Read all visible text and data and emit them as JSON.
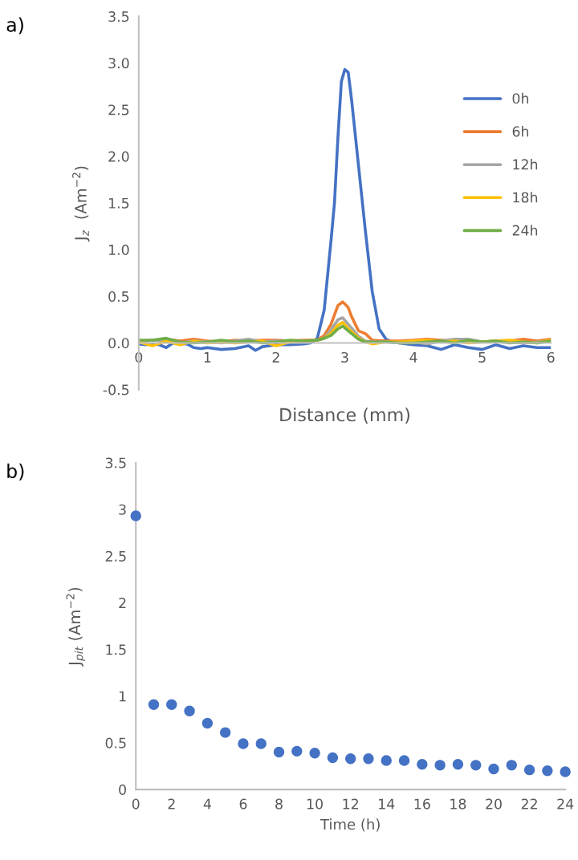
{
  "chart_data": [
    {
      "type": "line",
      "title": "a)",
      "xlabel": "Distance (mm)",
      "ylabel": "J$_{z}$  (Am$^{−2}$)",
      "xlim": [
        0,
        6
      ],
      "xticks": [
        0,
        1,
        2,
        3,
        4,
        5,
        6
      ],
      "ylim": [
        -0.5,
        3.5
      ],
      "yticks": [
        -0.5,
        {
          "value": 0,
          "label": "0.0"
        },
        0.5,
        {
          "value": 1,
          "label": "1.0"
        },
        1.5,
        {
          "value": 2,
          "label": "2.0"
        },
        2.5,
        {
          "value": 3,
          "label": "3.0"
        },
        3.5
      ],
      "grid": false,
      "legend": "right",
      "marker": "none",
      "line_style": "solid",
      "series": [
        {
          "name": "0h",
          "color": "#4472c4",
          "x": [
            0,
            0.1,
            0.2,
            0.3,
            0.4,
            0.5,
            0.6,
            0.7,
            0.8,
            0.9,
            1.0,
            1.2,
            1.4,
            1.6,
            1.7,
            1.8,
            2.0,
            2.2,
            2.4,
            2.5,
            2.6,
            2.7,
            2.8,
            2.85,
            2.9,
            2.95,
            3.0,
            3.05,
            3.1,
            3.2,
            3.3,
            3.4,
            3.5,
            3.6,
            3.7,
            3.8,
            4.0,
            4.2,
            4.4,
            4.6,
            4.8,
            5.0,
            5.2,
            5.4,
            5.6,
            5.8,
            6.0
          ],
          "values": [
            -0.01,
            -0.02,
            -0.01,
            -0.02,
            -0.05,
            0.0,
            -0.01,
            -0.01,
            -0.05,
            -0.06,
            -0.05,
            -0.07,
            -0.06,
            -0.03,
            -0.08,
            -0.04,
            -0.02,
            -0.02,
            -0.01,
            0.0,
            0.05,
            0.35,
            1.1,
            1.5,
            2.2,
            2.8,
            2.93,
            2.9,
            2.6,
            1.9,
            1.2,
            0.55,
            0.15,
            0.04,
            0.01,
            0.0,
            -0.02,
            -0.03,
            -0.07,
            -0.02,
            -0.05,
            -0.07,
            -0.02,
            -0.06,
            -0.03,
            -0.05,
            -0.05
          ]
        },
        {
          "name": "6h",
          "color": "#ed7d31",
          "x": [
            0,
            0.2,
            0.4,
            0.6,
            0.8,
            1.0,
            1.2,
            1.4,
            1.6,
            1.8,
            2.0,
            2.2,
            2.4,
            2.6,
            2.7,
            2.8,
            2.9,
            2.97,
            3.05,
            3.1,
            3.2,
            3.3,
            3.4,
            3.6,
            3.8,
            4.0,
            4.2,
            4.4,
            4.6,
            4.8,
            5.0,
            5.2,
            5.4,
            5.6,
            5.8,
            6.0
          ],
          "values": [
            0.02,
            0.03,
            0.04,
            0.02,
            0.04,
            0.02,
            0.01,
            0.03,
            0.02,
            0.03,
            0.03,
            0.02,
            0.03,
            0.03,
            0.08,
            0.2,
            0.4,
            0.44,
            0.38,
            0.28,
            0.13,
            0.1,
            0.03,
            0.02,
            0.02,
            0.03,
            0.04,
            0.03,
            0.02,
            0.03,
            0.01,
            0.02,
            0.02,
            0.04,
            0.02,
            0.04
          ]
        },
        {
          "name": "12h",
          "color": "#a5a5a5",
          "x": [
            0,
            0.2,
            0.4,
            0.6,
            0.8,
            1.0,
            1.2,
            1.4,
            1.6,
            1.8,
            2.0,
            2.2,
            2.4,
            2.6,
            2.7,
            2.8,
            2.9,
            2.97,
            3.05,
            3.1,
            3.2,
            3.3,
            3.4,
            3.6,
            3.8,
            4.0,
            4.2,
            4.4,
            4.6,
            4.8,
            5.0,
            5.2,
            5.4,
            5.6,
            5.8,
            6.0
          ],
          "values": [
            0.01,
            0.03,
            0.02,
            0.0,
            0.02,
            0.01,
            0.0,
            0.02,
            0.04,
            0.01,
            0.02,
            0.01,
            0.02,
            0.03,
            0.05,
            0.14,
            0.25,
            0.27,
            0.2,
            0.16,
            0.07,
            0.02,
            0.01,
            0.01,
            0.0,
            0.01,
            -0.01,
            0.02,
            0.04,
            0.04,
            0.01,
            0.02,
            0.01,
            0.0,
            0.01,
            0.02
          ]
        },
        {
          "name": "18h",
          "color": "#ffc000",
          "x": [
            0,
            0.2,
            0.4,
            0.6,
            0.8,
            1.0,
            1.2,
            1.4,
            1.6,
            1.8,
            2.0,
            2.2,
            2.4,
            2.6,
            2.7,
            2.8,
            2.9,
            2.97,
            3.05,
            3.1,
            3.2,
            3.3,
            3.4,
            3.6,
            3.8,
            4.0,
            4.2,
            4.4,
            4.6,
            4.8,
            5.0,
            5.2,
            5.4,
            5.6,
            5.8,
            6.0
          ],
          "values": [
            0.01,
            -0.03,
            0.02,
            -0.02,
            0.02,
            0.0,
            0.01,
            0.0,
            0.01,
            0.02,
            -0.03,
            0.01,
            0.02,
            0.03,
            0.05,
            0.1,
            0.19,
            0.22,
            0.15,
            0.12,
            0.05,
            0.01,
            -0.01,
            0.01,
            0.01,
            0.02,
            0.03,
            0.01,
            0.02,
            0.0,
            0.01,
            0.02,
            0.03,
            0.01,
            0.0,
            0.03
          ]
        },
        {
          "name": "24h",
          "color": "#70ad47",
          "x": [
            0,
            0.2,
            0.4,
            0.6,
            0.8,
            1.0,
            1.2,
            1.4,
            1.6,
            1.8,
            2.0,
            2.2,
            2.4,
            2.6,
            2.7,
            2.8,
            2.9,
            2.97,
            3.05,
            3.1,
            3.2,
            3.3,
            3.4,
            3.6,
            3.8,
            4.0,
            4.2,
            4.4,
            4.6,
            4.8,
            5.0,
            5.2,
            5.4,
            5.6,
            5.8,
            6.0
          ],
          "values": [
            0.03,
            0.03,
            0.05,
            0.01,
            0.0,
            0.01,
            0.03,
            0.01,
            0.02,
            0.0,
            0.01,
            0.03,
            0.02,
            0.03,
            0.05,
            0.08,
            0.15,
            0.18,
            0.13,
            0.1,
            0.04,
            0.01,
            0.01,
            0.01,
            0.0,
            0.0,
            0.01,
            0.02,
            0.0,
            0.03,
            0.01,
            0.02,
            0.0,
            0.01,
            0.0,
            0.02
          ]
        }
      ]
    },
    {
      "type": "scatter",
      "title": "b)",
      "xlabel": "Time (h)",
      "ylabel": "J$_{pit}$ (Am$^{−2}$)",
      "xlim": [
        0,
        24
      ],
      "xticks": [
        0,
        2,
        4,
        6,
        8,
        10,
        12,
        14,
        16,
        18,
        20,
        22,
        24
      ],
      "ylim": [
        0,
        3.5
      ],
      "yticks": [
        0,
        0.5,
        1,
        1.5,
        2,
        2.5,
        3,
        3.5
      ],
      "grid": false,
      "legend": false,
      "marker": "circle",
      "series": [
        {
          "color": "#4472c4",
          "x": [
            0,
            1,
            2,
            3,
            4,
            5,
            6,
            7,
            8,
            9,
            10,
            11,
            12,
            13,
            14,
            15,
            16,
            17,
            18,
            19,
            20,
            21,
            22,
            23,
            24
          ],
          "values": [
            2.93,
            0.91,
            0.91,
            0.84,
            0.71,
            0.61,
            0.49,
            0.49,
            0.4,
            0.41,
            0.39,
            0.34,
            0.33,
            0.33,
            0.31,
            0.31,
            0.27,
            0.26,
            0.27,
            0.26,
            0.22,
            0.26,
            0.21,
            0.2,
            0.19
          ]
        }
      ]
    }
  ]
}
